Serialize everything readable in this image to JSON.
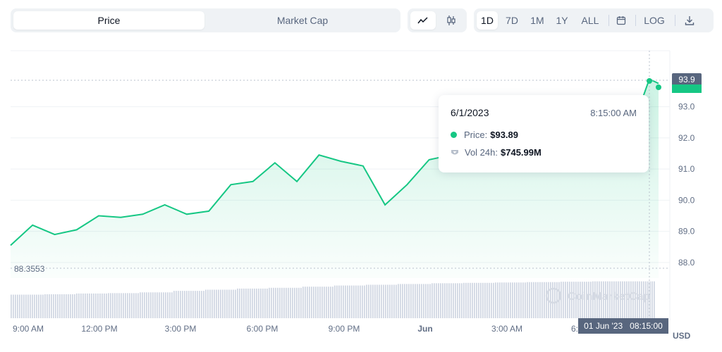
{
  "tabs": [
    {
      "label": "Price",
      "active": true
    },
    {
      "label": "Market Cap",
      "active": false
    }
  ],
  "chart_type_icons": [
    "line-chart-icon",
    "candlestick-icon"
  ],
  "ranges": [
    {
      "label": "1D",
      "active": true
    },
    {
      "label": "7D"
    },
    {
      "label": "1M"
    },
    {
      "label": "1Y"
    },
    {
      "label": "ALL"
    }
  ],
  "log_label": "LOG",
  "icons": {
    "calendar": "calendar-icon",
    "download": "download-icon"
  },
  "colors": {
    "accent": "#16c784",
    "fill": "#e8f8f0",
    "gridline": "#eff2f5",
    "volume": "#d1d7e3"
  },
  "tooltip": {
    "date": "6/1/2023",
    "time": "8:15:00 AM",
    "price_label": "Price:",
    "price_value": "$93.89",
    "vol_label": "Vol 24h:",
    "vol_value": "$745.99M"
  },
  "open_price_label": "88.3553",
  "current_badge": "93.9",
  "crosshair_label": "01 Jun '23   08:15:00",
  "currency": "USD",
  "watermark": "CoinMarketCap",
  "chart_data": {
    "type": "line",
    "ylim": [
      87.5,
      94.8
    ],
    "yticks": [
      "93.0",
      "92.0",
      "91.0",
      "90.0",
      "89.0",
      "88.0"
    ],
    "xticks": [
      "9:00 AM",
      "12:00 PM",
      "3:00 PM",
      "6:00 PM",
      "9:00 PM",
      "Jun",
      "3:00 AM",
      "6:"
    ],
    "x": [
      "9:00 AM",
      "10:00 AM",
      "11:00 AM",
      "12:00 PM",
      "1:00 PM",
      "2:00 PM",
      "3:00 PM",
      "4:00 PM",
      "5:00 PM",
      "5:30 PM",
      "6:00 PM",
      "6:30 PM",
      "7:00 PM",
      "7:30 PM",
      "8:00 PM",
      "8:30 PM",
      "9:00 PM",
      "9:30 PM",
      "10:00 PM",
      "11:00 PM",
      "12:00 AM",
      "1:00 AM",
      "2:00 AM",
      "3:00 AM",
      "4:00 AM",
      "5:00 AM",
      "6:00 AM",
      "7:00 AM",
      "8:00 AM",
      "8:15 AM"
    ],
    "values": [
      88.55,
      89.2,
      88.9,
      89.05,
      89.5,
      89.45,
      89.55,
      89.85,
      89.55,
      89.65,
      90.5,
      90.6,
      91.2,
      90.6,
      91.45,
      91.25,
      91.1,
      89.85,
      90.5,
      91.3,
      91.45,
      91.7,
      91.65,
      91.7,
      91.75,
      91.8,
      91.8,
      91.85,
      91.9,
      93.89
    ],
    "volume_level": [
      0.62,
      0.63,
      0.65,
      0.66,
      0.68,
      0.72,
      0.75,
      0.78,
      0.8,
      0.83,
      0.86,
      0.88,
      0.9,
      0.92,
      0.93,
      0.94,
      0.95,
      0.96,
      0.97,
      0.97
    ]
  }
}
